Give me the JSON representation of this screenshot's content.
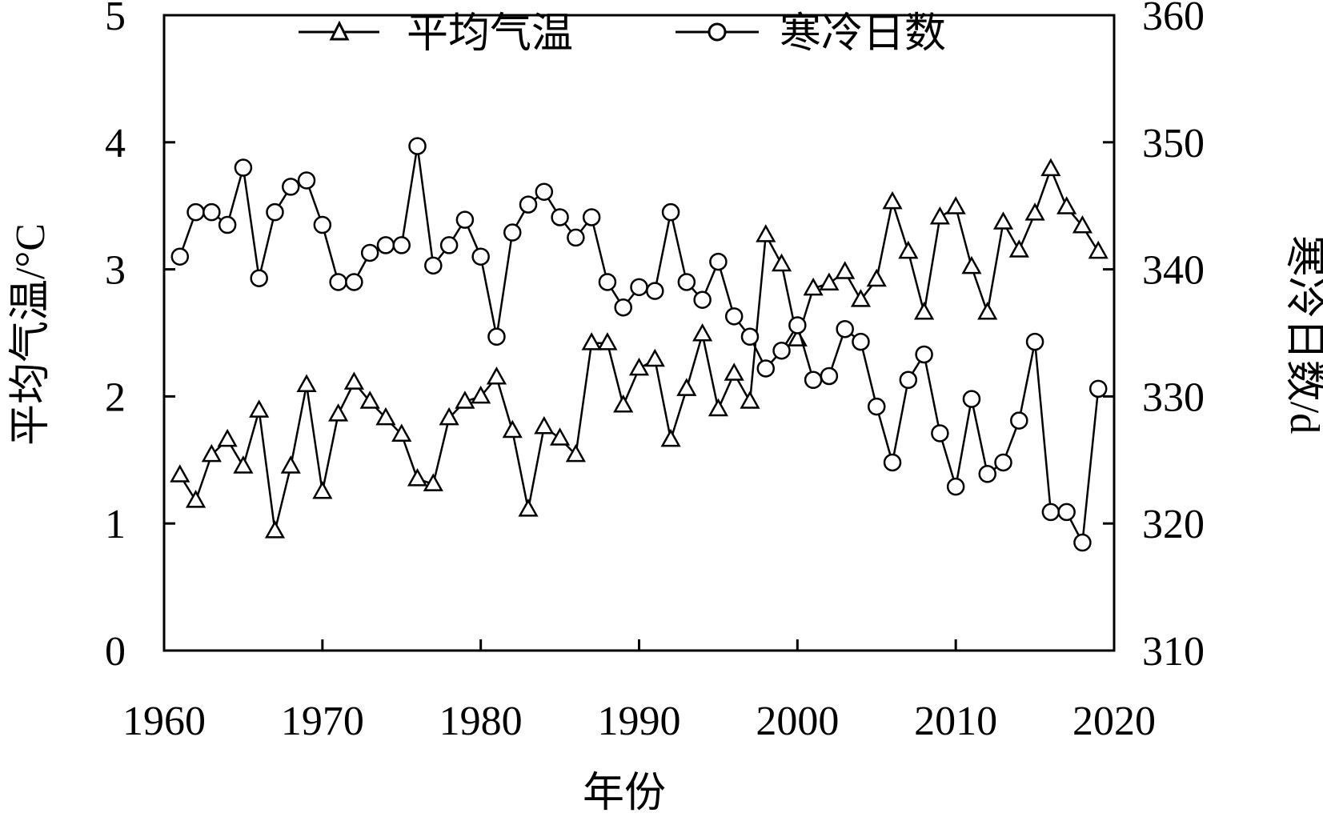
{
  "chart_data": {
    "type": "line",
    "xlabel": "年份",
    "ylabel_left": "平均气温/°C",
    "ylabel_right": "寒冷日数/d",
    "xlim": [
      1960,
      2020
    ],
    "ylim_left": [
      0,
      5
    ],
    "ylim_right": [
      310,
      360
    ],
    "x_ticks": [
      "1960",
      "1970",
      "1980",
      "1990",
      "2000",
      "2010",
      "2020"
    ],
    "y_ticks_left": [
      "0",
      "1",
      "2",
      "3",
      "4",
      "5"
    ],
    "y_ticks_right": [
      "310",
      "320",
      "330",
      "340",
      "350",
      "360"
    ],
    "grid": false,
    "legend_position": "top",
    "x": [
      1961,
      1962,
      1963,
      1964,
      1965,
      1966,
      1967,
      1968,
      1969,
      1970,
      1971,
      1972,
      1973,
      1974,
      1975,
      1976,
      1977,
      1978,
      1979,
      1980,
      1981,
      1982,
      1983,
      1984,
      1985,
      1986,
      1987,
      1988,
      1989,
      1990,
      1991,
      1992,
      1993,
      1994,
      1995,
      1996,
      1997,
      1998,
      1999,
      2000,
      2001,
      2002,
      2003,
      2004,
      2005,
      2006,
      2007,
      2008,
      2009,
      2010,
      2011,
      2012,
      2013,
      2014,
      2015,
      2016,
      2017,
      2018,
      2019
    ],
    "series": [
      {
        "name": "平均气温",
        "axis": "left",
        "marker": "triangle",
        "values": [
          1.38,
          1.18,
          1.54,
          1.66,
          1.45,
          1.89,
          0.94,
          1.45,
          2.09,
          1.25,
          1.86,
          2.11,
          1.96,
          1.83,
          1.7,
          1.35,
          1.31,
          1.83,
          1.96,
          2.0,
          2.15,
          1.73,
          1.11,
          1.76,
          1.67,
          1.54,
          2.42,
          2.42,
          1.93,
          2.22,
          2.29,
          1.66,
          2.06,
          2.49,
          1.9,
          2.18,
          1.96,
          3.27,
          3.04,
          2.45,
          2.85,
          2.89,
          2.98,
          2.76,
          2.92,
          3.53,
          3.14,
          2.66,
          3.41,
          3.49,
          3.02,
          2.66,
          3.37,
          3.15,
          3.44,
          3.79,
          3.49,
          3.34,
          3.14
        ]
      },
      {
        "name": "寒冷日数",
        "axis": "right",
        "marker": "circle",
        "values": [
          341,
          344.5,
          344.5,
          343.5,
          348,
          339.3,
          344.5,
          346.5,
          347,
          343.5,
          339,
          339,
          341.3,
          341.9,
          341.9,
          349.7,
          340.3,
          341.9,
          343.9,
          341,
          334.7,
          342.9,
          345.1,
          346.1,
          344.1,
          342.5,
          344.1,
          339,
          337,
          338.6,
          338.3,
          344.5,
          339,
          337.6,
          340.6,
          336.3,
          334.7,
          332.2,
          333.6,
          335.6,
          331.3,
          331.6,
          335.3,
          334.3,
          329.2,
          324.8,
          331.3,
          333.3,
          327.1,
          322.9,
          329.8,
          323.9,
          324.8,
          328.1,
          334.3,
          320.9,
          320.9,
          318.5,
          330.6
        ]
      }
    ]
  }
}
